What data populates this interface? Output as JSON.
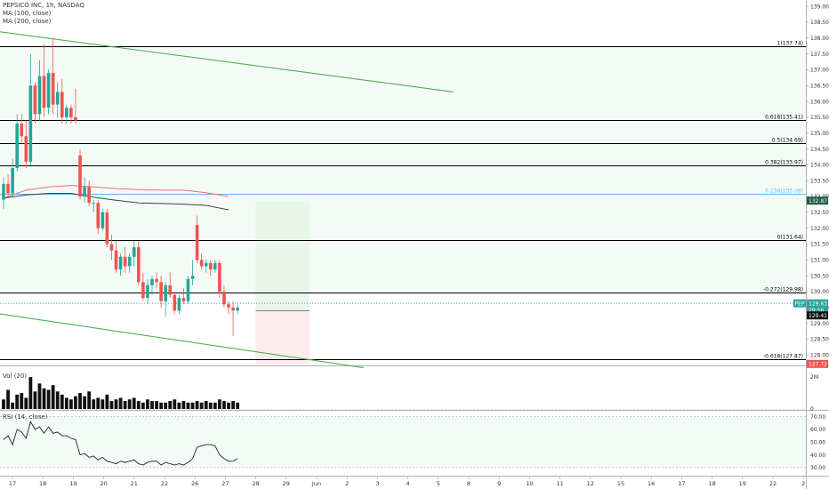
{
  "header": {
    "symbol_line": "PEPSICO INC, 1h, NASDAQ",
    "ma100_label": "MA (100, close)",
    "ma200_label": "MA (200, close)",
    "vol_label": "Vol (20)",
    "rsi_label": "RSI (14, close)"
  },
  "colors": {
    "up": "#26a69a",
    "down": "#ef5350",
    "channel": "#4caf50",
    "fib_line": "#000000",
    "fib_236": "#64b5f6",
    "ma100": "#e57373",
    "ma200": "#424242",
    "target_zone": "#e8f5e9",
    "stop_zone": "#ffebee",
    "current_price": "#26a69a",
    "rsi_line": "#222222"
  },
  "chart_data": {
    "type": "candlestick",
    "symbol": "PEP",
    "interval": "1h",
    "price_axis": {
      "ticks": [
        "139.00",
        "138.50",
        "138.00",
        "137.50",
        "137.00",
        "136.50",
        "136.00",
        "135.50",
        "135.00",
        "134.50",
        "134.00",
        "133.50",
        "133.00",
        "132.50",
        "132.00",
        "131.50",
        "131.00",
        "130.50",
        "130.00",
        "129.50",
        "129.00",
        "128.50",
        "128.00"
      ],
      "range": [
        127.7,
        139.2
      ]
    },
    "time_axis": {
      "ticks": [
        "17",
        "18",
        "19",
        "20",
        "21",
        "22",
        "26",
        "27",
        "28",
        "29",
        "Jun",
        "2",
        "3",
        "4",
        "5",
        "8",
        "9",
        "10",
        "11",
        "12",
        "15",
        "16",
        "17",
        "18",
        "19",
        "22",
        "2"
      ]
    },
    "candles": [
      {
        "o": 132.9,
        "h": 133.6,
        "l": 132.6,
        "c": 133.4
      },
      {
        "o": 133.4,
        "h": 133.7,
        "l": 133.0,
        "c": 133.1
      },
      {
        "o": 133.1,
        "h": 134.2,
        "l": 133.0,
        "c": 133.9
      },
      {
        "o": 133.9,
        "h": 135.6,
        "l": 133.8,
        "c": 135.3
      },
      {
        "o": 135.3,
        "h": 135.6,
        "l": 134.7,
        "c": 134.9
      },
      {
        "o": 134.9,
        "h": 135.4,
        "l": 133.9,
        "c": 134.1
      },
      {
        "o": 134.1,
        "h": 137.5,
        "l": 134.0,
        "c": 136.5
      },
      {
        "o": 136.5,
        "h": 136.6,
        "l": 135.3,
        "c": 135.6
      },
      {
        "o": 135.6,
        "h": 137.3,
        "l": 135.4,
        "c": 136.8
      },
      {
        "o": 136.8,
        "h": 137.8,
        "l": 135.5,
        "c": 135.8
      },
      {
        "o": 135.8,
        "h": 137.0,
        "l": 135.6,
        "c": 136.9
      },
      {
        "o": 136.9,
        "h": 138.0,
        "l": 135.6,
        "c": 135.9
      },
      {
        "o": 135.9,
        "h": 136.6,
        "l": 135.5,
        "c": 136.3
      },
      {
        "o": 136.3,
        "h": 136.7,
        "l": 135.3,
        "c": 135.5
      },
      {
        "o": 135.5,
        "h": 135.9,
        "l": 135.3,
        "c": 135.8
      },
      {
        "o": 135.8,
        "h": 135.9,
        "l": 135.3,
        "c": 135.5
      },
      {
        "o": 135.5,
        "h": 136.4,
        "l": 135.3,
        "c": 135.4
      },
      {
        "o": 134.3,
        "h": 134.5,
        "l": 132.9,
        "c": 133.0
      },
      {
        "o": 133.0,
        "h": 133.6,
        "l": 132.8,
        "c": 133.3
      },
      {
        "o": 133.3,
        "h": 133.5,
        "l": 132.7,
        "c": 132.8
      },
      {
        "o": 132.8,
        "h": 132.9,
        "l": 132.5,
        "c": 132.8
      },
      {
        "o": 132.8,
        "h": 132.9,
        "l": 131.8,
        "c": 132.0
      },
      {
        "o": 132.0,
        "h": 132.6,
        "l": 131.9,
        "c": 132.5
      },
      {
        "o": 132.5,
        "h": 132.6,
        "l": 131.4,
        "c": 131.5
      },
      {
        "o": 131.5,
        "h": 131.8,
        "l": 131.0,
        "c": 131.3
      },
      {
        "o": 131.3,
        "h": 131.6,
        "l": 130.6,
        "c": 130.7
      },
      {
        "o": 130.7,
        "h": 131.2,
        "l": 130.5,
        "c": 131.1
      },
      {
        "o": 131.1,
        "h": 131.4,
        "l": 130.6,
        "c": 130.8
      },
      {
        "o": 130.8,
        "h": 131.2,
        "l": 130.6,
        "c": 131.1
      },
      {
        "o": 131.1,
        "h": 131.6,
        "l": 130.8,
        "c": 131.4
      },
      {
        "o": 131.4,
        "h": 131.6,
        "l": 130.2,
        "c": 130.3
      },
      {
        "o": 130.3,
        "h": 130.6,
        "l": 129.7,
        "c": 129.8
      },
      {
        "o": 129.8,
        "h": 130.4,
        "l": 129.6,
        "c": 130.2
      },
      {
        "o": 130.2,
        "h": 130.5,
        "l": 129.9,
        "c": 130.4
      },
      {
        "o": 130.4,
        "h": 130.6,
        "l": 130.1,
        "c": 130.3
      },
      {
        "o": 130.3,
        "h": 130.5,
        "l": 129.5,
        "c": 129.7
      },
      {
        "o": 129.7,
        "h": 130.3,
        "l": 129.2,
        "c": 130.2
      },
      {
        "o": 130.2,
        "h": 130.6,
        "l": 129.8,
        "c": 129.9
      },
      {
        "o": 129.9,
        "h": 130.0,
        "l": 129.3,
        "c": 129.4
      },
      {
        "o": 129.4,
        "h": 129.9,
        "l": 129.3,
        "c": 129.8
      },
      {
        "o": 129.8,
        "h": 130.1,
        "l": 129.6,
        "c": 129.7
      },
      {
        "o": 129.7,
        "h": 130.5,
        "l": 129.6,
        "c": 130.4
      },
      {
        "o": 130.4,
        "h": 131.0,
        "l": 130.2,
        "c": 130.5
      },
      {
        "o": 132.1,
        "h": 132.4,
        "l": 130.9,
        "c": 131.0
      },
      {
        "o": 131.0,
        "h": 131.2,
        "l": 130.7,
        "c": 130.8
      },
      {
        "o": 130.8,
        "h": 131.0,
        "l": 130.6,
        "c": 130.9
      },
      {
        "o": 130.9,
        "h": 131.0,
        "l": 130.5,
        "c": 130.7
      },
      {
        "o": 130.7,
        "h": 131.0,
        "l": 130.6,
        "c": 130.9
      },
      {
        "o": 130.9,
        "h": 131.0,
        "l": 129.8,
        "c": 130.0
      },
      {
        "o": 130.0,
        "h": 130.2,
        "l": 129.5,
        "c": 129.6
      },
      {
        "o": 129.6,
        "h": 129.7,
        "l": 129.3,
        "c": 129.5
      },
      {
        "o": 129.5,
        "h": 129.7,
        "l": 128.6,
        "c": 129.4
      },
      {
        "o": 129.4,
        "h": 129.6,
        "l": 129.3,
        "c": 129.5
      }
    ],
    "fib_levels": [
      {
        "label": "1(137.74)",
        "value": 137.74
      },
      {
        "label": "0.618(135.41)",
        "value": 135.41
      },
      {
        "label": "0.5(134.69)",
        "value": 134.69
      },
      {
        "label": "0.382(133.97)",
        "value": 133.97
      },
      {
        "label": "0.236(133.08)",
        "value": 133.08
      },
      {
        "label": "0(131.64)",
        "value": 131.64
      },
      {
        "label": "-0.272(129.98)",
        "value": 129.98
      },
      {
        "label": "-0.618(127.87)",
        "value": 127.87
      }
    ],
    "channel_lines": [
      {
        "from": {
          "bar": -1,
          "price": 138.2
        },
        "to": {
          "bar": 100,
          "price": 136.3
        }
      },
      {
        "from": {
          "bar": -1,
          "price": 129.3
        },
        "to": {
          "bar": 80,
          "price": 127.6
        }
      }
    ],
    "position_tool": {
      "start_bar": 56,
      "end_bar": 68,
      "entry": 129.4,
      "target": 132.87,
      "stop": 127.72
    },
    "price_labels": [
      {
        "text": "132.87",
        "price": 132.87,
        "bg": "#1e5c4a"
      },
      {
        "text": "129.63",
        "price": 129.63,
        "bg": "#26a69a",
        "tag": "PEP"
      },
      {
        "text": "29:56",
        "price": 129.42,
        "bg": "#26a69a"
      },
      {
        "text": "129.41",
        "price": 129.25,
        "bg": "#111111"
      },
      {
        "text": "127.72",
        "price": 127.72,
        "bg": "#ef5350"
      }
    ],
    "volume": {
      "axis_ticks": [
        "2M",
        "0"
      ],
      "max": 2.4,
      "values": [
        0.6,
        1.2,
        0.4,
        0.9,
        1.0,
        0.7,
        2.0,
        1.1,
        1.6,
        1.3,
        1.2,
        1.5,
        1.1,
        0.9,
        0.7,
        0.6,
        0.8,
        1.0,
        0.8,
        1.1,
        0.6,
        0.7,
        0.6,
        0.9,
        0.5,
        0.6,
        0.7,
        0.5,
        0.6,
        0.7,
        0.5,
        0.4,
        0.6,
        0.5,
        0.5,
        0.4,
        0.4,
        0.5,
        0.6,
        0.4,
        0.5,
        0.4,
        0.4,
        0.5,
        0.4,
        0.5,
        0.4,
        0.4,
        0.6,
        0.5,
        0.4,
        0.5,
        0.4
      ]
    },
    "rsi": {
      "axis_ticks": [
        "70.00",
        "60.00",
        "50.00",
        "40.00",
        "30.00"
      ],
      "range": [
        25,
        74
      ],
      "values": [
        52,
        55,
        48,
        60,
        58,
        53,
        66,
        60,
        62,
        57,
        62,
        57,
        58,
        55,
        55,
        53,
        52,
        40,
        41,
        38,
        39,
        36,
        38,
        35,
        34,
        33,
        35,
        34,
        35,
        36,
        33,
        32,
        34,
        35,
        35,
        32,
        34,
        33,
        32,
        33,
        32,
        34,
        37,
        46,
        47,
        48,
        48,
        47,
        40,
        37,
        35,
        35,
        37
      ]
    }
  }
}
